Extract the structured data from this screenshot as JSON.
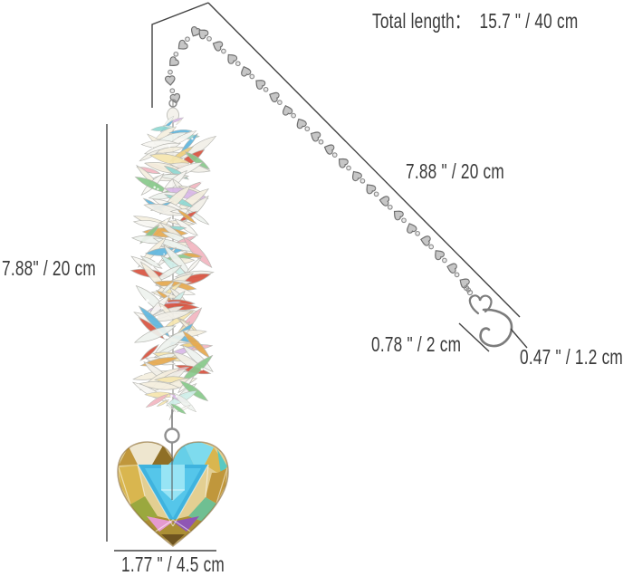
{
  "labels": {
    "total_length": "Total length：  15.7 \" / 40 cm",
    "chain_length": "7.88 \" / 20 cm",
    "cluster_length": "7.88\" / 20 cm",
    "hook_length": "0.78 \" / 2 cm",
    "hook_width": "0.47 \" / 1.2 cm",
    "heart_width": "1.77 \" / 4.5 cm"
  },
  "colors": {
    "background": "#ffffff",
    "dimension_line": "#424242",
    "label_text": "#3a3a3a",
    "metal": "#c6c6c6",
    "metal_outline": "#6e6e6e",
    "wire": "#9a9a96",
    "heart_base": "#e3cf92",
    "heart_cyan": "#3fb3de",
    "heart_cyan_mid": "#55c6ea",
    "heart_cyan_light": "#97e4f5",
    "heart_gold": "#d9b64f",
    "heart_amber": "#c0973c",
    "heart_dark_amber": "#8f6f26",
    "heart_white": "#eee6cf",
    "heart_teal": "#59c9c2",
    "heart_green": "#6fbf92",
    "heart_olive": "#ab8f35",
    "heart_pink": "#e59ad0",
    "heart_purple": "#8f56b4",
    "heart_tip_dark": "#6e5420",
    "crystal_outline": "#b4b4ae",
    "crystal_palette": [
      "#f8f7f3",
      "#f1efe8",
      "#eef3ee",
      "#f5efdf",
      "#cfeee9",
      "#8fd8d2",
      "#f6e6ae",
      "#eecf7c",
      "#e6a94f",
      "#d85340",
      "#5fb6de",
      "#88c98b",
      "#d9b8e8",
      "#f2b6c1"
    ]
  },
  "icons": {
    "hanging_chain": "heart-bead-chain",
    "s_hook": "s-shaped-hook",
    "pendant": "faceted-crystal-heart"
  }
}
